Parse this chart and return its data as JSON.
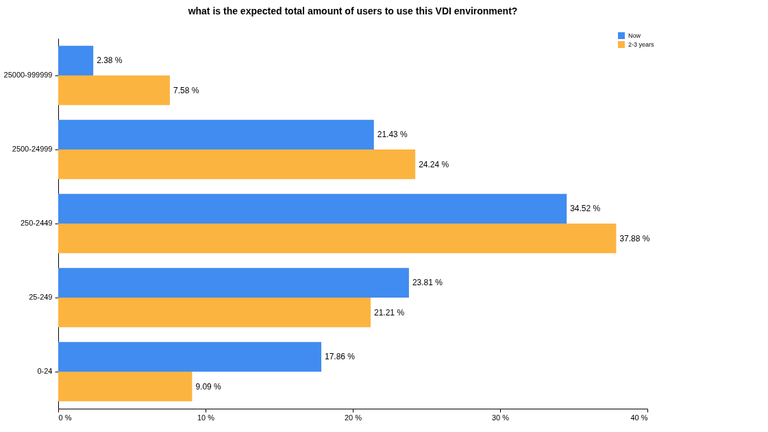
{
  "chart_data": {
    "type": "bar",
    "orientation": "horizontal",
    "title": "what is the expected total amount of users to use this VDI environment?",
    "categories": [
      "25000-999999",
      "2500-24999",
      "250-2449",
      "25-249",
      "0-24"
    ],
    "series": [
      {
        "name": "Now",
        "color": "#418cf0",
        "values": [
          2.38,
          21.43,
          34.52,
          23.81,
          17.86
        ],
        "value_labels": [
          "2.38 %",
          "21.43 %",
          "34.52 %",
          "23.81 %",
          "17.86 %"
        ]
      },
      {
        "name": "2-3 years",
        "color": "#fcb441",
        "values": [
          7.58,
          24.24,
          37.88,
          21.21,
          9.09
        ],
        "value_labels": [
          "7.58 %",
          "24.24 %",
          "37.88 %",
          "21.21 %",
          "9.09 %"
        ]
      }
    ],
    "xlim": [
      0,
      40
    ],
    "xticks": [
      {
        "value": 0,
        "label": "0 %"
      },
      {
        "value": 10,
        "label": "10 %"
      },
      {
        "value": 20,
        "label": "20 %"
      },
      {
        "value": 30,
        "label": "30 %"
      },
      {
        "value": 40,
        "label": "40 %"
      }
    ],
    "grid": false,
    "legend": "top right"
  }
}
